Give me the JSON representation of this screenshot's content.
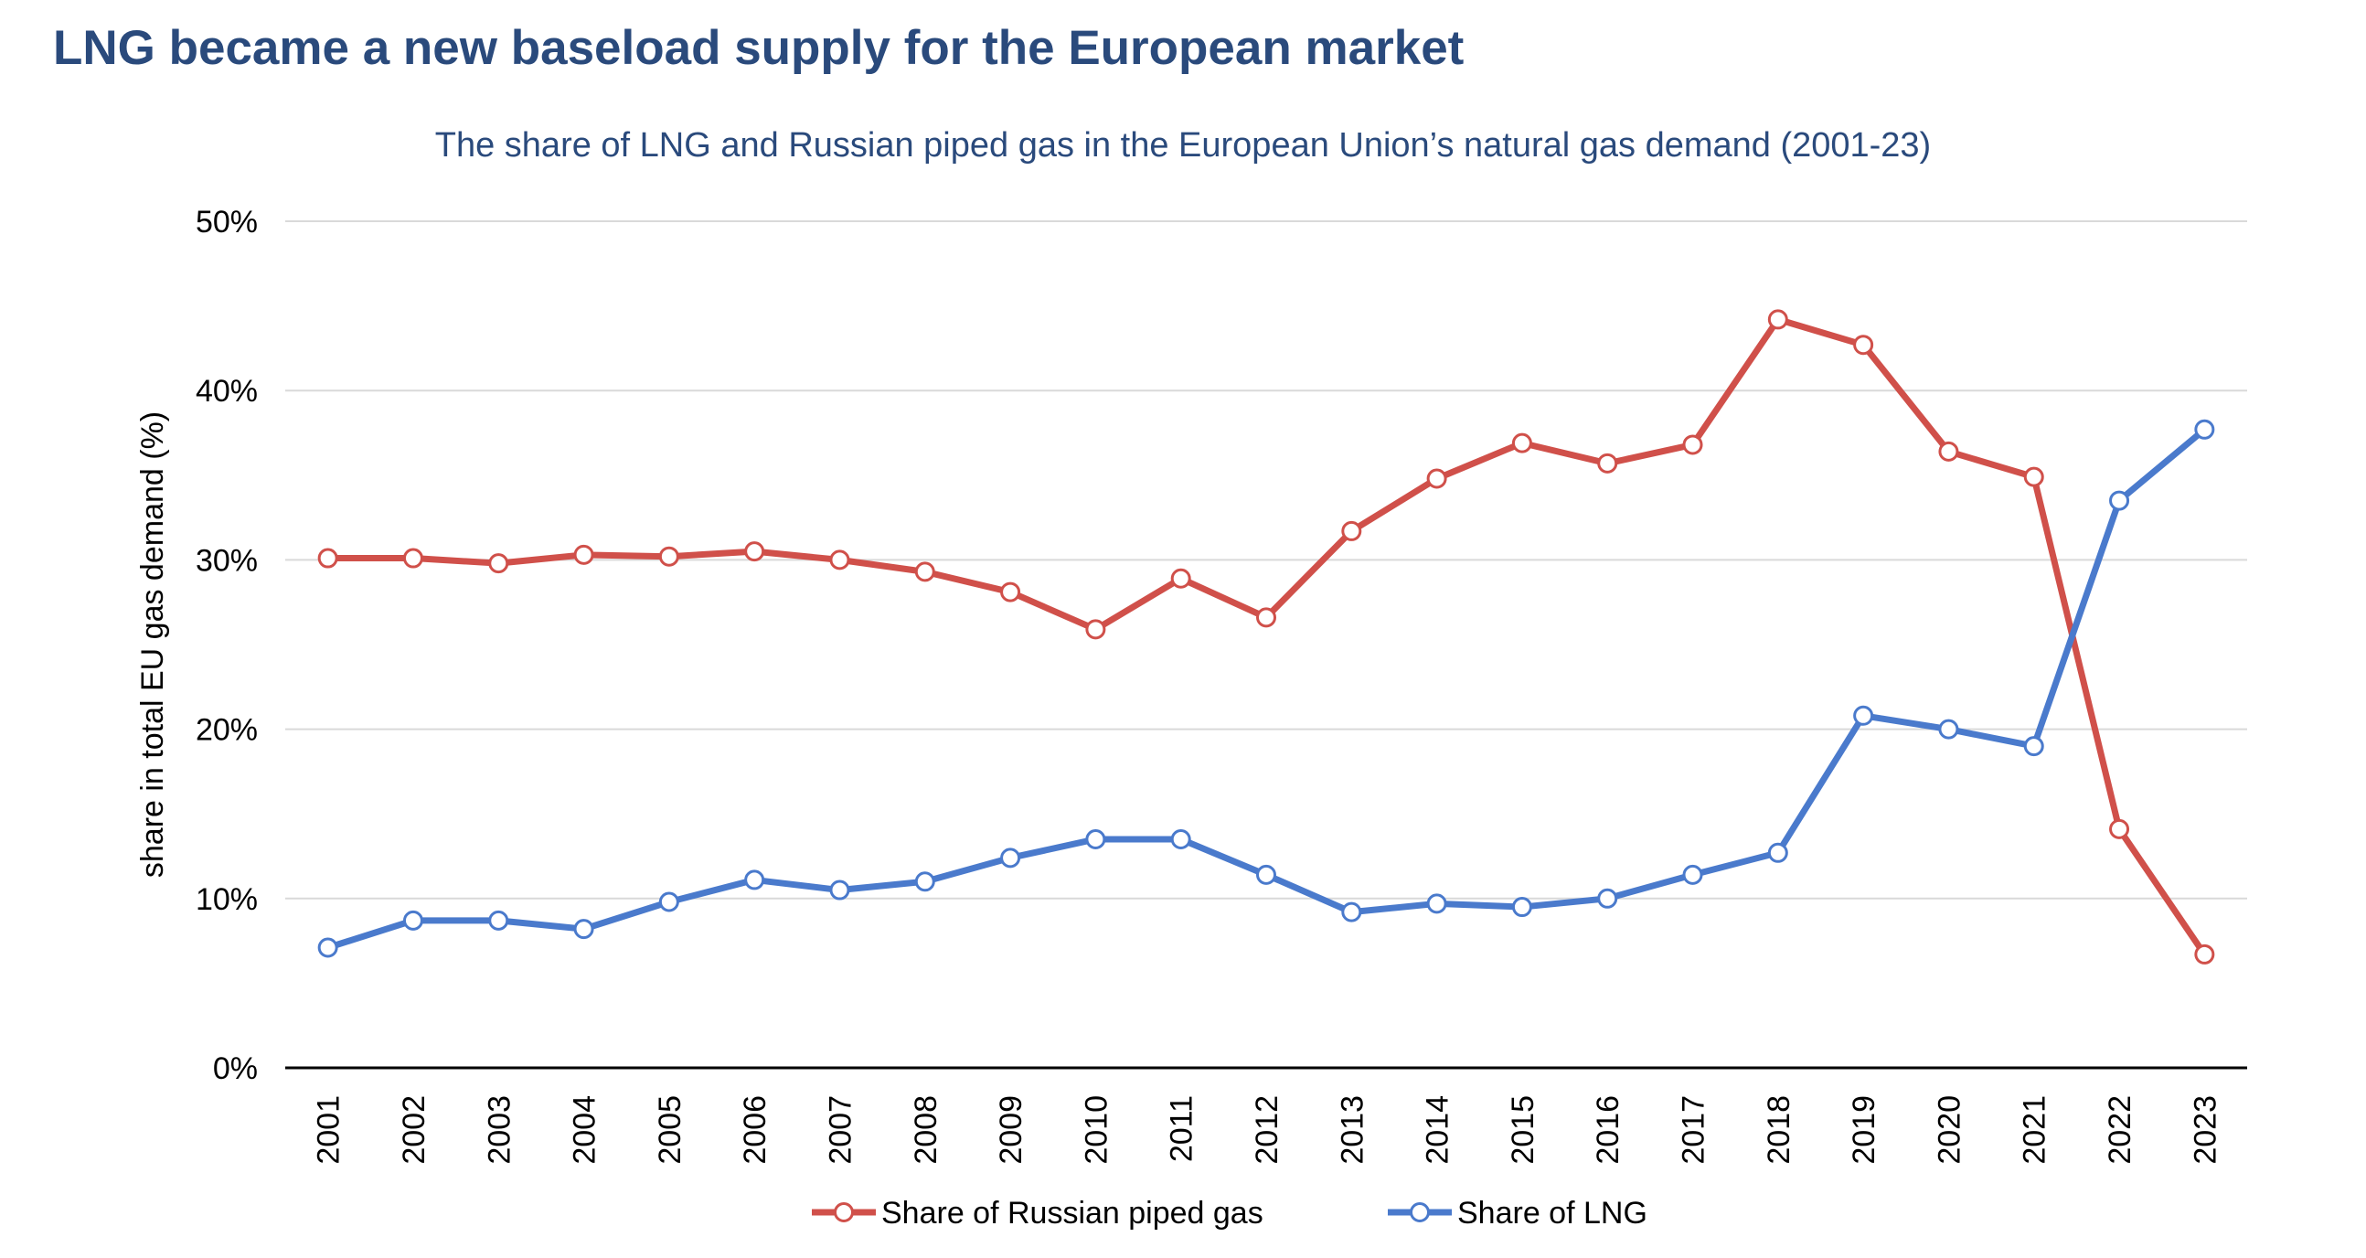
{
  "chart_data": {
    "type": "line",
    "title": "LNG became a new baseload supply for the European market",
    "subtitle": "The share of LNG and Russian piped gas in the European Union’s natural gas demand (2001-23)",
    "xlabel": "",
    "ylabel": "share in total EU gas demand (%)",
    "ylim": [
      0,
      50
    ],
    "y_ticks": [
      "0%",
      "10%",
      "20%",
      "30%",
      "40%",
      "50%"
    ],
    "grid": "horizontal",
    "legend_position": "bottom",
    "categories": [
      "2001",
      "2002",
      "2003",
      "2004",
      "2005",
      "2006",
      "2007",
      "2008",
      "2009",
      "2010",
      "2011",
      "2012",
      "2013",
      "2014",
      "2015",
      "2016",
      "2017",
      "2018",
      "2019",
      "2020",
      "2021",
      "2022",
      "2023"
    ],
    "series": [
      {
        "name": "Share of Russian piped gas",
        "color": "#d0504a",
        "values": [
          30.1,
          30.1,
          29.8,
          30.3,
          30.2,
          30.5,
          30.0,
          29.3,
          28.1,
          25.9,
          28.9,
          26.6,
          31.7,
          34.8,
          36.9,
          35.7,
          36.8,
          44.2,
          42.7,
          36.4,
          34.9,
          14.1,
          6.7
        ]
      },
      {
        "name": "Share of LNG",
        "color": "#4a7acc",
        "values": [
          7.1,
          8.7,
          8.7,
          8.2,
          9.8,
          11.1,
          10.5,
          11.0,
          12.4,
          13.5,
          13.5,
          11.4,
          9.2,
          9.7,
          9.5,
          10.0,
          11.4,
          12.7,
          20.8,
          20.0,
          19.0,
          33.5,
          37.7
        ]
      }
    ]
  }
}
